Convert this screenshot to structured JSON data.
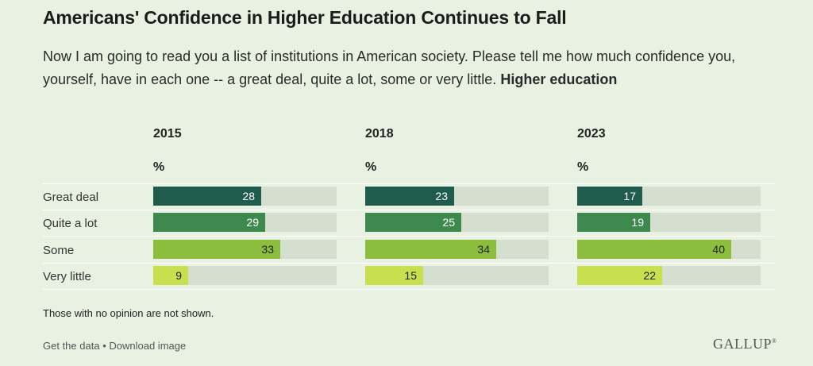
{
  "title": "Americans' Confidence in Higher Education Continues to Fall",
  "subtitle_text": "Now I am going to read you a list of institutions in American society. Please tell me how much confidence you, yourself, have in each one -- a great deal, quite a lot, some or very little.",
  "subtitle_bold": "Higher education",
  "unit_label": "%",
  "footnote": "Those with no opinion are not shown.",
  "footer": {
    "get_data": "Get the data",
    "separator": "•",
    "download": "Download image"
  },
  "logo_text": "GALLUP",
  "colors": {
    "great_deal": "#1f5c4e",
    "quite_a_lot": "#3e8a4e",
    "some": "#8dbd3c",
    "very_little": "#c9e04e",
    "track": "#d5dfcf",
    "background": "#e8f1e2"
  },
  "chart_data": {
    "type": "bar",
    "orientation": "horizontal",
    "categories": [
      "Great deal",
      "Quite a lot",
      "Some",
      "Very little"
    ],
    "series": [
      {
        "name": "2015",
        "values": [
          28,
          29,
          33,
          9
        ]
      },
      {
        "name": "2018",
        "values": [
          23,
          25,
          34,
          15
        ]
      },
      {
        "name": "2023",
        "values": [
          17,
          19,
          40,
          22
        ]
      }
    ],
    "xlim": [
      0,
      100
    ]
  }
}
